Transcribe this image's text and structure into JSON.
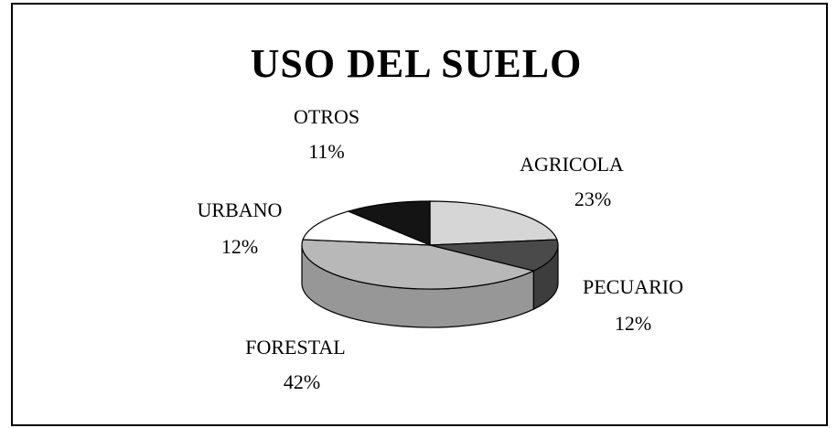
{
  "chart_data": {
    "type": "pie",
    "title": "USO DEL SUELO",
    "categories": [
      "AGRICOLA",
      "PECUARIO",
      "FORESTAL",
      "URBANO",
      "OTROS"
    ],
    "values": [
      23,
      12,
      42,
      12,
      11
    ],
    "value_labels": [
      "23%",
      "12%",
      "42%",
      "12%",
      "11%"
    ],
    "colors": [
      "#d6d6d6",
      "#4a4a4a",
      "#b8b8b8",
      "#ffffff",
      "#141414"
    ]
  }
}
